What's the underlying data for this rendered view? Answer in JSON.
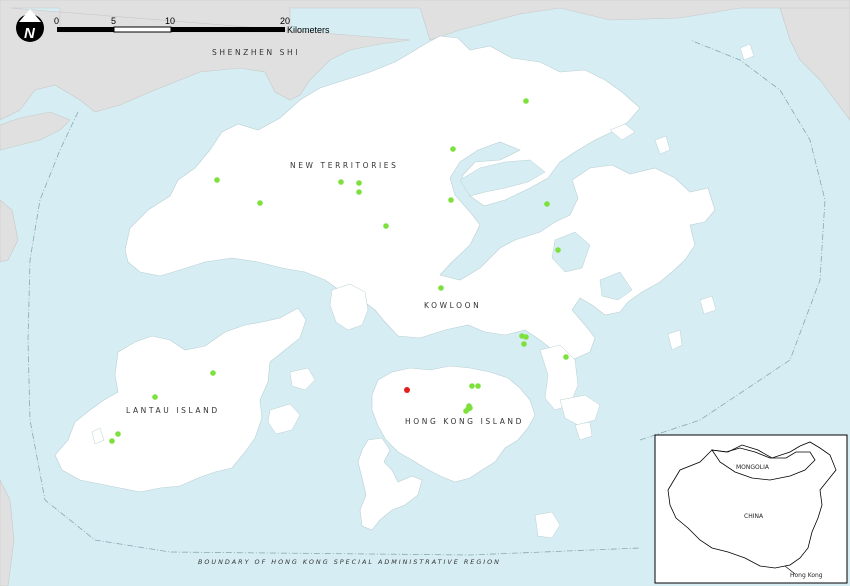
{
  "scale_bar": {
    "ticks": [
      "0",
      "5",
      "10",
      "20"
    ],
    "unit": "Kilometers"
  },
  "north_arrow": {
    "letter": "N"
  },
  "place_labels": {
    "shenzhen": "SHENZHEN SHI",
    "new_territories": "NEW TERRITORIES",
    "kowloon": "KOWLOON",
    "lantau": "LANTAU ISLAND",
    "hk_island": "HONG KONG ISLAND",
    "boundary": "BOUNDARY OF HONG KONG SPECIAL ADMINISTRATIVE REGION"
  },
  "inset": {
    "mongolia": "MONGOLIA",
    "china": "CHINA",
    "hong_kong": "Hong Kong"
  },
  "colors": {
    "sea": "#d6eef3",
    "land": "#ffffff",
    "mainland": "#e0e0e0",
    "site_green": "#7ee03c",
    "site_red": "#e0201c"
  },
  "sites": {
    "green_count": 26,
    "red_count": 1
  }
}
